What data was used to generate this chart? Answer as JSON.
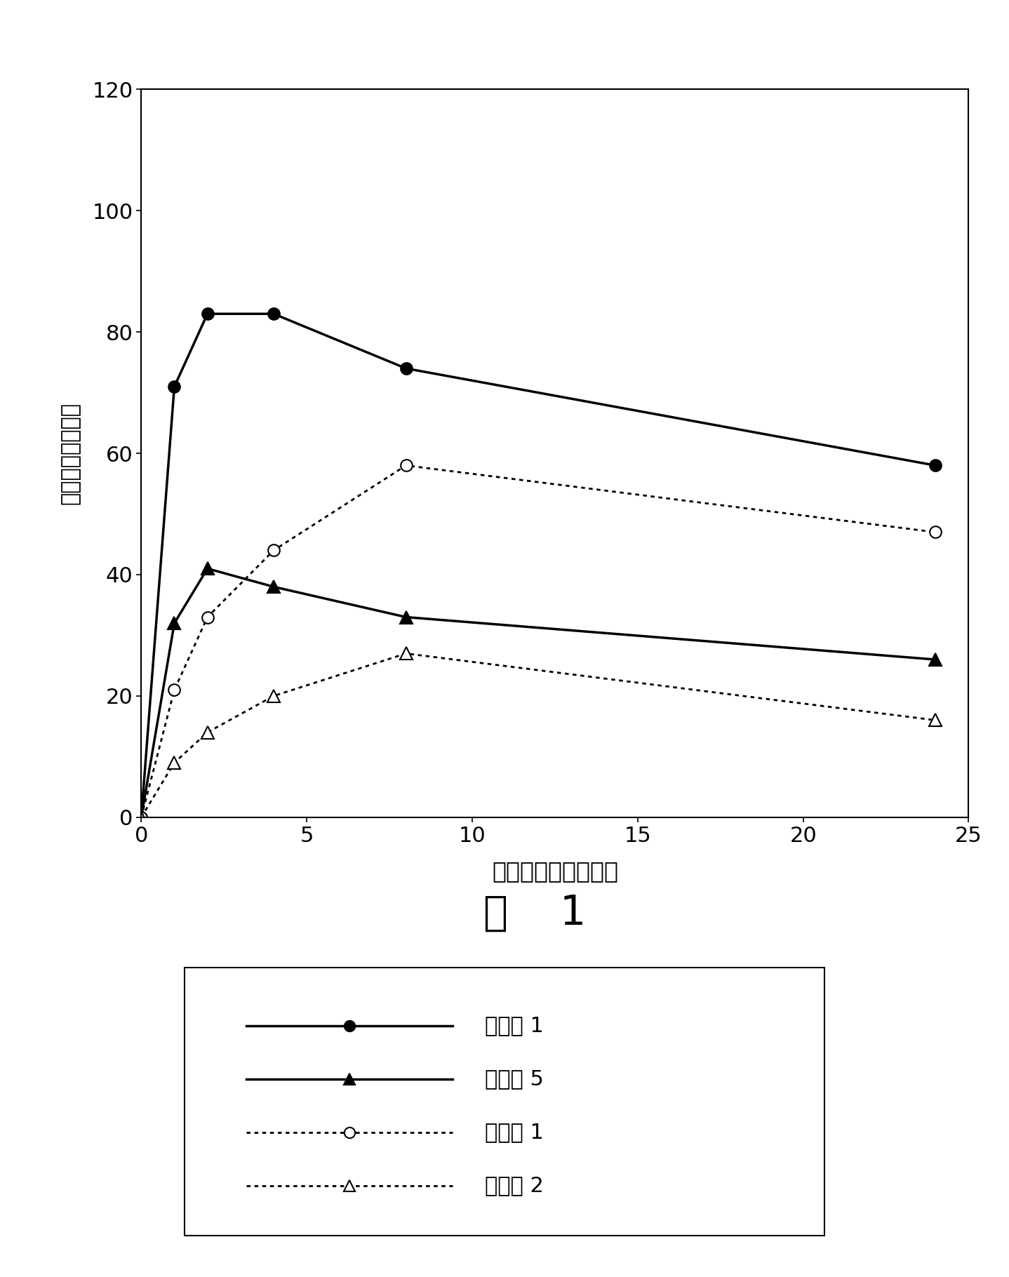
{
  "series": [
    {
      "label": "实施例 1",
      "x": [
        0,
        1,
        2,
        4,
        8,
        24
      ],
      "y": [
        0,
        71,
        83,
        83,
        74,
        58
      ],
      "linestyle": "-",
      "marker": "o",
      "marker_filled": true,
      "linewidth": 2.5
    },
    {
      "label": "实施例 5",
      "x": [
        0,
        1,
        2,
        4,
        8,
        24
      ],
      "y": [
        0,
        32,
        41,
        38,
        33,
        26
      ],
      "linestyle": "-",
      "marker": "^",
      "marker_filled": true,
      "linewidth": 2.5
    },
    {
      "label": "对比例 1",
      "x": [
        0,
        1,
        2,
        4,
        8,
        24
      ],
      "y": [
        0,
        21,
        33,
        44,
        58,
        47
      ],
      "linestyle": "dotted",
      "marker": "o",
      "marker_filled": false,
      "linewidth": 2.0
    },
    {
      "label": "对比例 2",
      "x": [
        0,
        1,
        2,
        4,
        8,
        24
      ],
      "y": [
        0,
        9,
        14,
        20,
        27,
        16
      ],
      "linestyle": "dotted",
      "marker": "^",
      "marker_filled": false,
      "linewidth": 2.0
    }
  ],
  "xlabel": "粘合时间（小时数）",
  "ylabel": "氯丁喘胺的血浓度",
  "title": "图    1",
  "xlim": [
    0,
    25
  ],
  "ylim": [
    0,
    120
  ],
  "xticks": [
    0,
    5,
    10,
    15,
    20,
    25
  ],
  "yticks": [
    0,
    20,
    40,
    60,
    80,
    100,
    120
  ],
  "xlabel_fontsize": 24,
  "ylabel_fontsize": 22,
  "title_fontsize": 42,
  "tick_fontsize": 22,
  "legend_fontsize": 22,
  "marker_size_circle": 12,
  "marker_size_triangle": 13
}
